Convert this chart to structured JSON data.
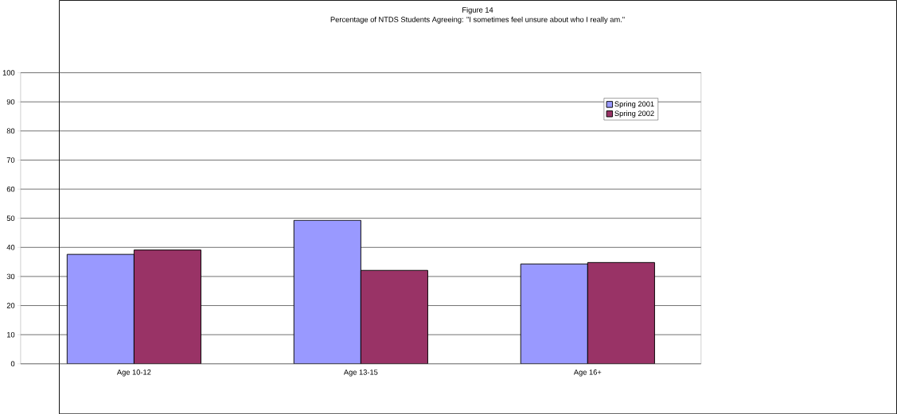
{
  "chart_data": {
    "type": "bar",
    "title": "Figure 14",
    "subtitle": "Percentage of NTDS Students Agreeing: \"I sometimes feel unsure about who I really am.\"",
    "categories": [
      "Age 10-12",
      "Age 13-15",
      "Age 16+"
    ],
    "series": [
      {
        "name": "Spring 2001",
        "color": "#9999ff",
        "values": [
          37.6,
          49.3,
          34.3
        ]
      },
      {
        "name": "Spring 2002",
        "color": "#993366",
        "values": [
          39.1,
          32.1,
          34.8
        ]
      }
    ],
    "ylim": [
      0,
      100
    ],
    "yticks": [
      0,
      10,
      20,
      30,
      40,
      50,
      60,
      70,
      80,
      90,
      100
    ],
    "grid": "y",
    "legend": "top right"
  }
}
